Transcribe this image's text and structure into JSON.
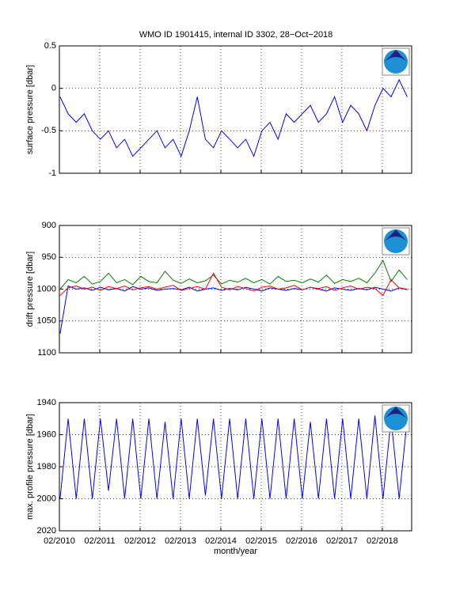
{
  "chart_data": [
    {
      "type": "line",
      "title": "WMO ID 1901415, internal ID 3302, 28−Oct−2018",
      "ylabel": "surface pressure [dbar]",
      "x": [
        2010.1,
        2010.3,
        2010.5,
        2010.7,
        2010.9,
        2011.1,
        2011.3,
        2011.5,
        2011.7,
        2011.9,
        2012.1,
        2012.3,
        2012.5,
        2012.7,
        2012.9,
        2013.1,
        2013.3,
        2013.5,
        2013.7,
        2013.9,
        2014.1,
        2014.3,
        2014.5,
        2014.7,
        2014.9,
        2015.1,
        2015.3,
        2015.5,
        2015.7,
        2015.9,
        2016.1,
        2016.3,
        2016.5,
        2016.7,
        2016.9,
        2017.1,
        2017.3,
        2017.5,
        2017.7,
        2017.9,
        2018.1,
        2018.3,
        2018.5,
        2018.7
      ],
      "series": [
        {
          "color": "#0000ff",
          "values": [
            -0.1,
            -0.3,
            -0.4,
            -0.3,
            -0.5,
            -0.6,
            -0.5,
            -0.7,
            -0.6,
            -0.8,
            -0.7,
            -0.6,
            -0.5,
            -0.7,
            -0.6,
            -0.8,
            -0.5,
            -0.1,
            -0.6,
            -0.7,
            -0.5,
            -0.6,
            -0.7,
            -0.6,
            -0.8,
            -0.5,
            -0.4,
            -0.6,
            -0.3,
            -0.4,
            -0.3,
            -0.2,
            -0.4,
            -0.3,
            -0.1,
            -0.4,
            -0.2,
            -0.3,
            -0.5,
            -0.2,
            0,
            -0.1,
            0.1,
            -0.1
          ]
        }
      ],
      "xlim": [
        2010.083,
        2018.81
      ],
      "xticks": [
        2010.083,
        2011.083,
        2012.083,
        2013.083,
        2014.083,
        2015.083,
        2016.083,
        2017.083,
        2018.083
      ],
      "ylim": [
        -1,
        0.5
      ],
      "yticks": [
        -1,
        -0.5,
        0,
        0.5
      ],
      "yreverse": false,
      "grid": true
    },
    {
      "type": "line",
      "ylabel": "drift pressure [dbar]",
      "x": [
        2010.1,
        2010.3,
        2010.5,
        2010.7,
        2010.9,
        2011.1,
        2011.3,
        2011.5,
        2011.7,
        2011.9,
        2012.1,
        2012.3,
        2012.5,
        2012.7,
        2012.9,
        2013.1,
        2013.3,
        2013.5,
        2013.7,
        2013.9,
        2014.1,
        2014.3,
        2014.5,
        2014.7,
        2014.9,
        2015.1,
        2015.3,
        2015.5,
        2015.7,
        2015.9,
        2016.1,
        2016.3,
        2016.5,
        2016.7,
        2016.9,
        2017.1,
        2017.3,
        2017.5,
        2017.7,
        2017.9,
        2018.1,
        2018.3,
        2018.5,
        2018.7
      ],
      "series": [
        {
          "color": "#008000",
          "values": [
            1000,
            985,
            990,
            980,
            992,
            988,
            975,
            990,
            985,
            993,
            980,
            988,
            990,
            972,
            986,
            991,
            984,
            990,
            987,
            978,
            992,
            986,
            989,
            983,
            990,
            985,
            992,
            980,
            988,
            986,
            990,
            984,
            989,
            978,
            991,
            985,
            988,
            983,
            990,
            975,
            955,
            988,
            970,
            985
          ]
        },
        {
          "color": "#0000ff",
          "values": [
            1070,
            995,
            1000,
            998,
            1002,
            997,
            1001,
            999,
            1003,
            996,
            1000,
            998,
            1002,
            1000,
            999,
            1001,
            997,
            1003,
            1000,
            998,
            1002,
            999,
            1001,
            997,
            1000,
            1003,
            998,
            1000,
            1002,
            999,
            1001,
            997,
            1000,
            1003,
            998,
            1000,
            1002,
            999,
            1001,
            997,
            1000,
            1003,
            998,
            1001
          ]
        },
        {
          "color": "#ff0000",
          "values": [
            1010,
            998,
            995,
            1000,
            997,
            1002,
            996,
            999,
            995,
            1001,
            998,
            996,
            1000,
            997,
            994,
            1002,
            999,
            996,
            1000,
            975,
            997,
            1001,
            996,
            999,
            1003,
            997,
            995,
            1000,
            998,
            994,
            1001,
            997,
            999,
            996,
            1002,
            998,
            995,
            1000,
            997,
            999,
            1010,
            985,
            998,
            1000
          ]
        }
      ],
      "xlim": [
        2010.083,
        2018.81
      ],
      "xticks": [
        2010.083,
        2011.083,
        2012.083,
        2013.083,
        2014.083,
        2015.083,
        2016.083,
        2017.083,
        2018.083
      ],
      "ylim": [
        900,
        1100
      ],
      "yticks": [
        900,
        950,
        1000,
        1050,
        1100
      ],
      "yreverse": true,
      "grid": true
    },
    {
      "type": "line",
      "ylabel": "max. profile pressure [dbar]",
      "xlabel": "month/year",
      "x": [
        2010.1,
        2010.3,
        2010.5,
        2010.7,
        2010.9,
        2011.1,
        2011.3,
        2011.5,
        2011.7,
        2011.9,
        2012.1,
        2012.3,
        2012.5,
        2012.7,
        2012.9,
        2013.1,
        2013.3,
        2013.5,
        2013.7,
        2013.9,
        2014.1,
        2014.3,
        2014.5,
        2014.7,
        2014.9,
        2015.1,
        2015.3,
        2015.5,
        2015.7,
        2015.9,
        2016.1,
        2016.3,
        2016.5,
        2016.7,
        2016.9,
        2017.1,
        2017.3,
        2017.5,
        2017.7,
        2017.9,
        2018.1,
        2018.3,
        2018.5,
        2018.7
      ],
      "series": [
        {
          "color": "#0000ff",
          "values": [
            2000,
            1950,
            2000,
            1950,
            2000,
            1950,
            1995,
            1950,
            2000,
            1950,
            2000,
            1950,
            2000,
            1952,
            2000,
            1950,
            2000,
            1950,
            1998,
            1950,
            2000,
            1950,
            2000,
            1950,
            2000,
            1950,
            2000,
            1950,
            2000,
            1950,
            2000,
            1952,
            2000,
            1950,
            2000,
            1950,
            2000,
            1950,
            2000,
            1948,
            2000,
            1950,
            2000,
            1950
          ]
        }
      ],
      "xlim": [
        2010.083,
        2018.81
      ],
      "xticks": [
        {
          "value": 2010.083,
          "label": "02/2010"
        },
        {
          "value": 2011.083,
          "label": "02/2011"
        },
        {
          "value": 2012.083,
          "label": "02/2012"
        },
        {
          "value": 2013.083,
          "label": "02/2013"
        },
        {
          "value": 2014.083,
          "label": "02/2014"
        },
        {
          "value": 2015.083,
          "label": "02/2015"
        },
        {
          "value": 2016.083,
          "label": "02/2016"
        },
        {
          "value": 2017.083,
          "label": "02/2017"
        },
        {
          "value": 2018.083,
          "label": "02/2018"
        }
      ],
      "ylim": [
        1940,
        2020
      ],
      "yticks": [
        1940,
        1960,
        1980,
        2000,
        2020
      ],
      "yreverse": true,
      "grid": true
    }
  ]
}
